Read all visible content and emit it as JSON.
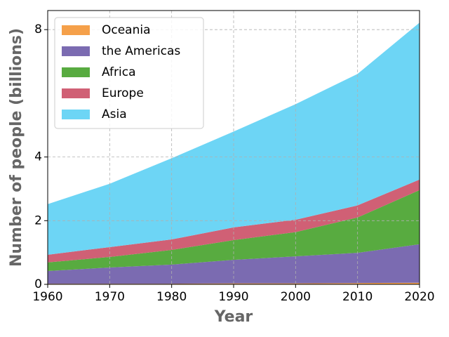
{
  "chart_data": {
    "type": "stacked_area",
    "x_label": "Year",
    "y_label": "Number of people (billions)",
    "x": [
      1960,
      1970,
      1980,
      1990,
      2000,
      2010,
      2020
    ],
    "series": [
      {
        "name": "Oceania",
        "color": "#f5a04a",
        "values": [
          0.02,
          0.02,
          0.02,
          0.03,
          0.03,
          0.04,
          0.05
        ]
      },
      {
        "name": "the Americas",
        "color": "#7b6bb1",
        "values": [
          0.4,
          0.51,
          0.6,
          0.74,
          0.85,
          0.95,
          1.21
        ]
      },
      {
        "name": "Africa",
        "color": "#58ab40",
        "values": [
          0.27,
          0.33,
          0.46,
          0.62,
          0.76,
          1.11,
          1.7
        ]
      },
      {
        "name": "Europe",
        "color": "#d06075",
        "values": [
          0.24,
          0.31,
          0.33,
          0.4,
          0.39,
          0.38,
          0.33
        ]
      },
      {
        "name": "Asia",
        "color": "#6dd5f5",
        "values": [
          1.59,
          1.99,
          2.55,
          3.01,
          3.63,
          4.13,
          4.93
        ]
      }
    ],
    "xlim": [
      1960,
      2020
    ],
    "xticks": [
      1960,
      1970,
      1980,
      1990,
      2000,
      2010,
      2020
    ],
    "ylim": [
      0,
      8.6
    ],
    "yticks": [
      0,
      2,
      4,
      8
    ],
    "grid": true,
    "legend": "upper left"
  }
}
